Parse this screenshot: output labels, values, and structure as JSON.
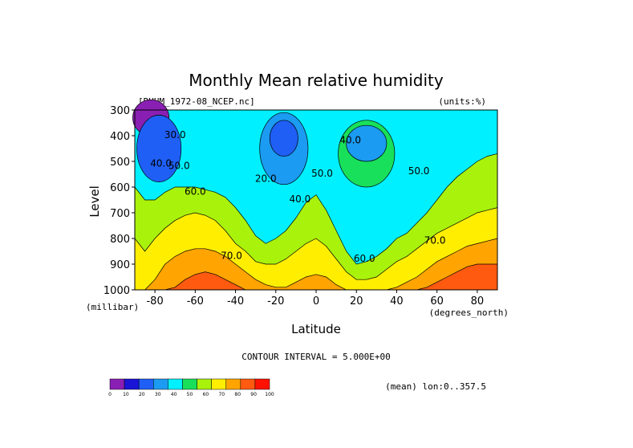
{
  "chart_data": {
    "type": "filled-contour",
    "title": "Monthly Mean relative humidity",
    "dataset_label": "[RHUM_1972-08_NCEP.nc]",
    "units_label": "(units:%)",
    "xlabel": "Latitude",
    "x_units": "(degrees_north)",
    "ylabel": "Level",
    "y_units": "(millibar)",
    "xlim": [
      -90,
      90
    ],
    "ylim": [
      300,
      1000
    ],
    "y_inverted": true,
    "x_ticks": [
      -80,
      -60,
      -40,
      -20,
      0,
      20,
      40,
      60,
      80
    ],
    "x_tick_labels": [
      "-80",
      "-60",
      "-40",
      "-20",
      "0",
      "20",
      "40",
      "60",
      "80"
    ],
    "y_ticks": [
      300,
      400,
      500,
      600,
      700,
      800,
      900,
      1000
    ],
    "y_tick_labels": [
      "300",
      "400",
      "500",
      "600",
      "700",
      "800",
      "900",
      "1000"
    ],
    "contour_interval_text": "CONTOUR INTERVAL = 5.000E+00",
    "subset_text": "(mean) lon:0..357.5",
    "colorbar": {
      "levels": [
        0,
        10,
        20,
        30,
        40,
        50,
        60,
        70,
        80,
        90,
        100
      ],
      "level_labels": [
        "0",
        "10",
        "20",
        "30",
        "40",
        "50",
        "60",
        "70",
        "80",
        "90",
        "100"
      ],
      "colors": [
        "#8a1fb4",
        "#1a14d6",
        "#1f5ff5",
        "#1b9bf2",
        "#00f0ff",
        "#18e05a",
        "#a9f20c",
        "#ffee00",
        "#ffa400",
        "#ff5a10",
        "#ff1200"
      ]
    },
    "grid": false,
    "contour_labels": [
      {
        "text": "30.0",
        "x": -70,
        "y": 410
      },
      {
        "text": "40.0",
        "x": -77,
        "y": 520
      },
      {
        "text": "50.0",
        "x": -68,
        "y": 530
      },
      {
        "text": "60.0",
        "x": -60,
        "y": 630
      },
      {
        "text": "70.0",
        "x": -42,
        "y": 880
      },
      {
        "text": "20.0",
        "x": -25,
        "y": 580
      },
      {
        "text": "40.0",
        "x": -8,
        "y": 660
      },
      {
        "text": "50.0",
        "x": 3,
        "y": 560
      },
      {
        "text": "40.0",
        "x": 17,
        "y": 430
      },
      {
        "text": "50.0",
        "x": 51,
        "y": 550
      },
      {
        "text": "60.0",
        "x": 24,
        "y": 890
      },
      {
        "text": "70.0",
        "x": 59,
        "y": 820
      }
    ],
    "contour_levels": [
      0,
      10,
      20,
      30,
      40,
      50,
      60,
      70,
      80,
      90,
      100
    ],
    "field_profile": {
      "x": [
        -90,
        -85,
        -80,
        -75,
        -70,
        -65,
        -60,
        -55,
        -50,
        -45,
        -40,
        -35,
        -30,
        -25,
        -20,
        -15,
        -10,
        -5,
        0,
        5,
        10,
        15,
        20,
        25,
        30,
        35,
        40,
        45,
        50,
        55,
        60,
        65,
        70,
        75,
        80,
        85,
        90
      ],
      "levels_mb": [
        300,
        400,
        500,
        600,
        700,
        800,
        900,
        1000
      ],
      "isoline_pressure": {
        "60": [
          600,
          650,
          650,
          620,
          600,
          600,
          600,
          610,
          620,
          640,
          680,
          730,
          790,
          820,
          800,
          770,
          720,
          660,
          630,
          690,
          770,
          850,
          900,
          890,
          870,
          840,
          800,
          780,
          740,
          700,
          650,
          600,
          560,
          530,
          500,
          480,
          470
        ],
        "70": [
          800,
          850,
          800,
          760,
          730,
          710,
          700,
          710,
          730,
          770,
          820,
          850,
          890,
          900,
          900,
          880,
          850,
          820,
          800,
          830,
          880,
          930,
          960,
          960,
          950,
          920,
          890,
          870,
          840,
          810,
          780,
          760,
          740,
          720,
          700,
          690,
          680
        ],
        "80": [
          1000,
          1000,
          960,
          900,
          870,
          850,
          840,
          840,
          850,
          870,
          900,
          930,
          960,
          980,
          990,
          990,
          970,
          950,
          940,
          950,
          980,
          1000,
          1000,
          1000,
          1000,
          1000,
          990,
          970,
          950,
          920,
          890,
          870,
          850,
          830,
          820,
          810,
          800
        ],
        "90": [
          1000,
          1000,
          1000,
          1000,
          990,
          960,
          940,
          930,
          940,
          960,
          980,
          1000,
          1000,
          1000,
          1000,
          1000,
          1000,
          1000,
          1000,
          1000,
          1000,
          1000,
          1000,
          1000,
          1000,
          1000,
          1000,
          1000,
          1000,
          990,
          970,
          950,
          930,
          910,
          900,
          900,
          900
        ]
      }
    }
  }
}
